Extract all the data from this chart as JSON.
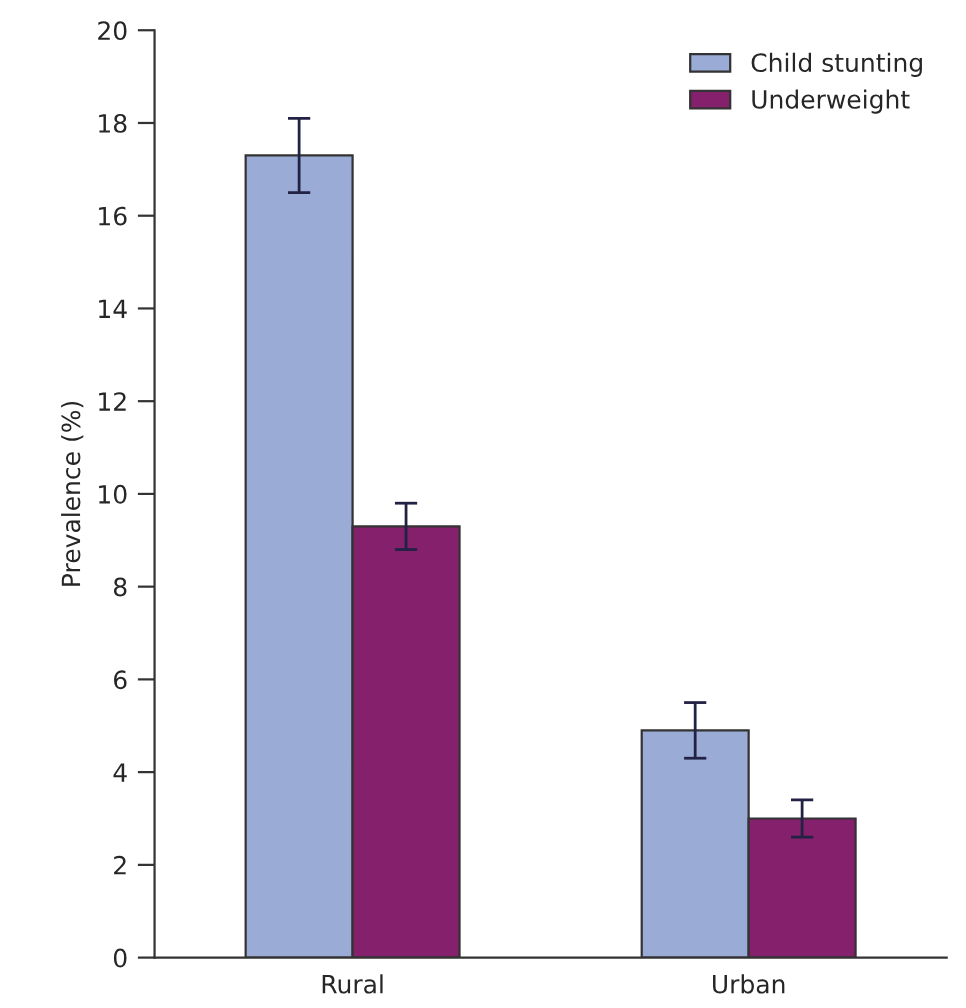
{
  "chart_data": {
    "type": "bar",
    "ylabel": "Prevalence (%)",
    "categories": [
      "Rural",
      "Urban"
    ],
    "series": [
      {
        "name": "Child stunting",
        "color": "#9aabd6",
        "values": [
          17.3,
          4.9
        ],
        "errors": [
          [
            16.5,
            18.1
          ],
          [
            4.3,
            5.5
          ]
        ]
      },
      {
        "name": "Underweight",
        "color": "#84206c",
        "values": [
          9.3,
          3.0
        ],
        "errors": [
          [
            8.8,
            9.8
          ],
          [
            2.6,
            3.4
          ]
        ]
      }
    ],
    "ylim": [
      0,
      20
    ],
    "yticks": [
      0,
      2,
      4,
      6,
      8,
      10,
      12,
      14,
      16,
      18,
      20
    ],
    "grid": false,
    "legend": "top right"
  }
}
